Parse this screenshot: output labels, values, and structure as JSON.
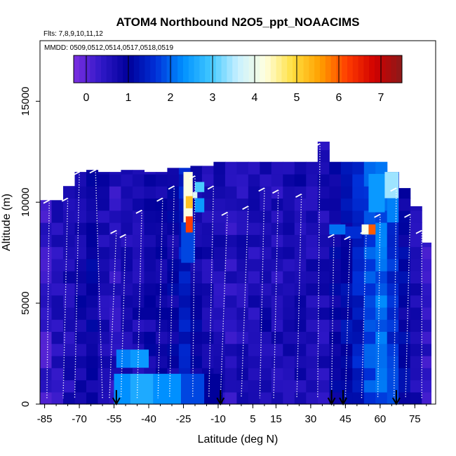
{
  "chart_data": {
    "type": "heatmap",
    "title": "ATOM4 Northbound N2O5_ppt_NOAACIMS",
    "flights_note": "Flts: 7,8,9,10,11,12",
    "dates_note": "MMDD: 0509,0512,0514,0517,0518,0519",
    "xlabel": "Latitude (deg N)",
    "ylabel": "Altitude (m)",
    "xlim": [
      -87,
      84
    ],
    "ylim": [
      0,
      18000
    ],
    "xticks": [
      -85,
      -70,
      -55,
      -40,
      -25,
      -10,
      5,
      15,
      30,
      45,
      60,
      75
    ],
    "xtick_labels": [
      "-85",
      "-70",
      "-55",
      "-40",
      "-25",
      "-10",
      "5",
      "15",
      "30",
      "45",
      "60",
      "75"
    ],
    "yticks": [
      0,
      5000,
      10000,
      15000
    ],
    "ytick_labels": [
      "0",
      "5000",
      "10000",
      "15000"
    ],
    "colorbar": {
      "range": [
        -0.3,
        7.5
      ],
      "ticks": [
        0,
        1,
        2,
        3,
        4,
        5,
        6,
        7
      ],
      "tick_labels": [
        "0",
        "1",
        "2",
        "3",
        "4",
        "5",
        "6",
        "7"
      ],
      "colors": [
        "#7b2fe0",
        "#3018c8",
        "#00009a",
        "#0030d8",
        "#0090ff",
        "#40c8ff",
        "#c8f0ff",
        "#ffffe0",
        "#ffe040",
        "#ffa000",
        "#ff3c00",
        "#d00000",
        "#8b1a1a"
      ]
    },
    "arrow_latitudes": [
      -54,
      -9,
      39,
      44,
      67
    ],
    "flight_tracks": [
      {
        "lat": -83,
        "alt_top": 10100,
        "lat_bottom": -84
      },
      {
        "lat": -75,
        "alt_top": 10200,
        "lat_bottom": -77
      },
      {
        "lat": -70,
        "alt_top": 11500,
        "lat_bottom": -72
      },
      {
        "lat": -63,
        "alt_top": 11600,
        "lat_bottom": -60
      },
      {
        "lat": -54,
        "alt_top": 8600,
        "lat_bottom": -57
      },
      {
        "lat": -50,
        "alt_top": 8400,
        "lat_bottom": -52
      },
      {
        "lat": -43,
        "alt_top": 9600,
        "lat_bottom": -45
      },
      {
        "lat": -34,
        "alt_top": 10200,
        "lat_bottom": -36
      },
      {
        "lat": -29,
        "alt_top": 10800,
        "lat_bottom": -31
      },
      {
        "lat": -20,
        "alt_top": 11300,
        "lat_bottom": -21
      },
      {
        "lat": -12,
        "alt_top": 10800,
        "lat_bottom": -14
      },
      {
        "lat": -6,
        "alt_top": 9500,
        "lat_bottom": -9
      },
      {
        "lat": 3,
        "alt_top": 9800,
        "lat_bottom": 0
      },
      {
        "lat": 10,
        "alt_top": 10700,
        "lat_bottom": 8
      },
      {
        "lat": 16,
        "alt_top": 10600,
        "lat_bottom": 14
      },
      {
        "lat": 26,
        "alt_top": 10400,
        "lat_bottom": 24
      },
      {
        "lat": 34,
        "alt_top": 12900,
        "lat_bottom": 33
      },
      {
        "lat": 40,
        "alt_top": 8400,
        "lat_bottom": 39
      },
      {
        "lat": 47,
        "alt_top": 8300,
        "lat_bottom": 45
      },
      {
        "lat": 54,
        "alt_top": 8600,
        "lat_bottom": 52
      },
      {
        "lat": 60,
        "alt_top": 9400,
        "lat_bottom": 59
      },
      {
        "lat": 67,
        "alt_top": 10700,
        "lat_bottom": 66
      },
      {
        "lat": 73,
        "alt_top": 9400,
        "lat_bottom": 71
      },
      {
        "lat": 78,
        "alt_top": 8600,
        "lat_bottom": 78
      }
    ],
    "curtain_columns": [
      {
        "lat_min": -87,
        "lat_max": -82,
        "alt_max": 10100,
        "value": 0.3
      },
      {
        "lat_min": -82,
        "lat_max": -77,
        "alt_max": 10100,
        "value": 0.5
      },
      {
        "lat_min": -77,
        "lat_max": -72,
        "alt_max": 10800,
        "value": 0.6
      },
      {
        "lat_min": -72,
        "lat_max": -67,
        "alt_max": 11500,
        "value": 0.8
      },
      {
        "lat_min": -67,
        "lat_max": -62,
        "alt_max": 11600,
        "value": 0.9
      },
      {
        "lat_min": -62,
        "lat_max": -57,
        "alt_max": 11500,
        "value": 0.7
      },
      {
        "lat_min": -57,
        "lat_max": -52,
        "alt_max": 11500,
        "value": 0.5
      },
      {
        "lat_min": -52,
        "lat_max": -47,
        "alt_max": 11600,
        "value": 0.6
      },
      {
        "lat_min": -47,
        "lat_max": -42,
        "alt_max": 11600,
        "value": 0.7
      },
      {
        "lat_min": -42,
        "lat_max": -37,
        "alt_max": 11500,
        "value": 0.8
      },
      {
        "lat_min": -37,
        "lat_max": -32,
        "alt_max": 11500,
        "value": 0.8
      },
      {
        "lat_min": -32,
        "lat_max": -27,
        "alt_max": 11700,
        "value": 0.9
      },
      {
        "lat_min": -27,
        "lat_max": -22,
        "alt_max": 11700,
        "value": 1.4
      },
      {
        "lat_min": -22,
        "lat_max": -17,
        "alt_max": 11800,
        "value": 0.9
      },
      {
        "lat_min": -17,
        "lat_max": -12,
        "alt_max": 11800,
        "value": 0.7
      },
      {
        "lat_min": -12,
        "lat_max": -7,
        "alt_max": 12000,
        "value": 0.6
      },
      {
        "lat_min": -7,
        "lat_max": -2,
        "alt_max": 12000,
        "value": 0.5
      },
      {
        "lat_min": -2,
        "lat_max": 3,
        "alt_max": 12000,
        "value": 0.6
      },
      {
        "lat_min": 3,
        "lat_max": 8,
        "alt_max": 12000,
        "value": 0.6
      },
      {
        "lat_min": 8,
        "lat_max": 13,
        "alt_max": 12000,
        "value": 0.7
      },
      {
        "lat_min": 13,
        "lat_max": 18,
        "alt_max": 12000,
        "value": 0.6
      },
      {
        "lat_min": 18,
        "lat_max": 23,
        "alt_max": 12000,
        "value": 0.6
      },
      {
        "lat_min": 23,
        "lat_max": 28,
        "alt_max": 12000,
        "value": 0.7
      },
      {
        "lat_min": 28,
        "lat_max": 33,
        "alt_max": 12000,
        "value": 0.7
      },
      {
        "lat_min": 33,
        "lat_max": 38,
        "alt_max": 13000,
        "value": 0.6
      },
      {
        "lat_min": 38,
        "lat_max": 43,
        "alt_max": 12000,
        "value": 0.9
      },
      {
        "lat_min": 43,
        "lat_max": 48,
        "alt_max": 12000,
        "value": 1.1
      },
      {
        "lat_min": 48,
        "lat_max": 53,
        "alt_max": 12000,
        "value": 1.4
      },
      {
        "lat_min": 53,
        "lat_max": 58,
        "alt_max": 12000,
        "value": 1.8
      },
      {
        "lat_min": 58,
        "lat_max": 63,
        "alt_max": 12000,
        "value": 2.0
      },
      {
        "lat_min": 63,
        "lat_max": 68,
        "alt_max": 11500,
        "value": 1.6
      },
      {
        "lat_min": 68,
        "lat_max": 73,
        "alt_max": 10700,
        "value": 1.0
      },
      {
        "lat_min": 73,
        "lat_max": 78,
        "alt_max": 9800,
        "value": 0.6
      },
      {
        "lat_min": 78,
        "lat_max": 82,
        "alt_max": 8000,
        "value": 0.4
      }
    ],
    "patches": [
      {
        "lat_min": -26,
        "lat_max": -20,
        "alt_min": 7000,
        "alt_max": 9000,
        "value": 1.8
      },
      {
        "lat_min": -25,
        "lat_max": -21,
        "alt_min": 9000,
        "alt_max": 11500,
        "value": 4.2
      },
      {
        "lat_min": -24,
        "lat_max": -21,
        "alt_min": 9700,
        "alt_max": 10300,
        "value": 5.2
      },
      {
        "lat_min": -24,
        "lat_max": -21,
        "alt_min": 8500,
        "alt_max": 9300,
        "value": 6.2
      },
      {
        "lat_min": -20,
        "lat_max": -16,
        "alt_min": 9500,
        "alt_max": 10200,
        "value": 2.4
      },
      {
        "lat_min": -20,
        "lat_max": -16,
        "alt_min": 10500,
        "alt_max": 11000,
        "value": 3.0
      },
      {
        "lat_min": -21,
        "lat_max": -19,
        "alt_min": 10200,
        "alt_max": 10500,
        "value": 3.8
      },
      {
        "lat_min": 55,
        "lat_max": 58,
        "alt_min": 8400,
        "alt_max": 8900,
        "value": 6.0
      },
      {
        "lat_min": 52,
        "lat_max": 55,
        "alt_min": 8400,
        "alt_max": 8900,
        "value": 4.2
      },
      {
        "lat_min": 38,
        "lat_max": 45,
        "alt_min": 8400,
        "alt_max": 8900,
        "value": 2.1
      },
      {
        "lat_min": 45,
        "lat_max": 52,
        "alt_min": 8200,
        "alt_max": 8800,
        "value": 1.6
      },
      {
        "lat_min": 55,
        "lat_max": 62,
        "alt_min": 9500,
        "alt_max": 11400,
        "value": 2.4
      },
      {
        "lat_min": 62,
        "lat_max": 68,
        "alt_min": 10200,
        "alt_max": 11500,
        "value": 3.4
      },
      {
        "lat_min": 63,
        "lat_max": 68,
        "alt_min": 9000,
        "alt_max": 10200,
        "value": 2.2
      },
      {
        "lat_min": -55,
        "lat_max": -48,
        "alt_min": 0,
        "alt_max": 1500,
        "value": 2.3
      },
      {
        "lat_min": -48,
        "lat_max": -38,
        "alt_min": 0,
        "alt_max": 1500,
        "value": 2.6
      },
      {
        "lat_min": -38,
        "lat_max": -26,
        "alt_min": 0,
        "alt_max": 1500,
        "value": 2.3
      },
      {
        "lat_min": -26,
        "lat_max": -16,
        "alt_min": 0,
        "alt_max": 1500,
        "value": 1.8
      },
      {
        "lat_min": -16,
        "lat_max": -8,
        "alt_min": 0,
        "alt_max": 1500,
        "value": 1.0
      },
      {
        "lat_min": -54,
        "lat_max": -48,
        "alt_min": 1800,
        "alt_max": 2700,
        "value": 2.2
      },
      {
        "lat_min": -48,
        "lat_max": -40,
        "alt_min": 1800,
        "alt_max": 2700,
        "value": 2.4
      }
    ]
  }
}
